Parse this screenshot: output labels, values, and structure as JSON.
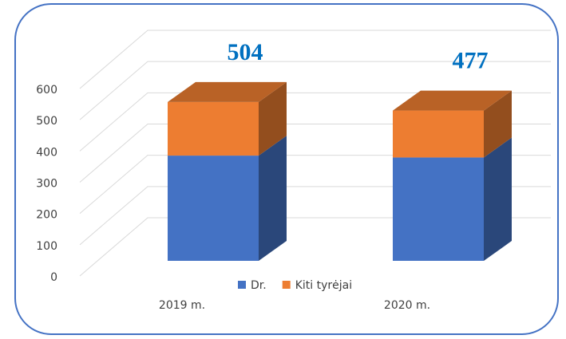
{
  "chart_data": {
    "type": "bar3d_stacked",
    "categories": [
      "2019 m.",
      "2020 m."
    ],
    "series": [
      {
        "name": "Dr.",
        "color": "#4472c4",
        "values": [
          334,
          328
        ]
      },
      {
        "name": "Kiti tyrėjai",
        "color": "#ed7d31",
        "values": [
          170,
          149
        ]
      }
    ],
    "totals": [
      504,
      477
    ],
    "ylim": [
      0,
      600
    ],
    "yticks": [
      0,
      100,
      200,
      300,
      400,
      500,
      600
    ],
    "grid": true,
    "legend": "bottom"
  }
}
